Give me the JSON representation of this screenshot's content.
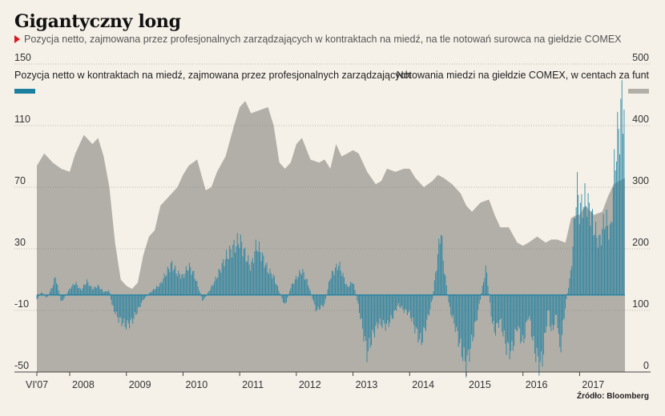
{
  "header": {
    "title": "Gigantyczny long",
    "subtitle": "Pozycja netto, zajmowana przez profesjonalnych zarządzających w kontraktach na miedź, na tle notowań surowca na giełdzie COMEX"
  },
  "legend": {
    "left": "Pozycja netto w kontraktach na miedź, zajmowana przez profesjonalnych zarządzających",
    "right": "Notowania miedzi na giełdzie COMEX, w centach za funt"
  },
  "source": "Źródło: Bloomberg",
  "colors": {
    "net_position": "#1b7fa0",
    "copper_price": "#b2afa8",
    "background": "#f6f1e8",
    "title_marker": "#d7191c"
  },
  "chart_data": {
    "type": "area",
    "x_tick_labels": [
      "VI'07",
      "2008",
      "2009",
      "2010",
      "2011",
      "2012",
      "2013",
      "2014",
      "2015",
      "2016",
      "2017"
    ],
    "x_ticks": [
      2007.42,
      2008.0,
      2009.0,
      2010.0,
      2011.0,
      2012.0,
      2013.0,
      2014.0,
      2015.0,
      2016.0,
      2017.0
    ],
    "x_range": [
      2007.42,
      2017.8
    ],
    "left_axis": {
      "ticks": [
        150,
        110,
        70,
        30,
        -10,
        -50
      ],
      "range": [
        -50,
        150
      ]
    },
    "right_axis": {
      "ticks": [
        500,
        400,
        300,
        200,
        100,
        0
      ],
      "range": [
        0,
        500
      ]
    },
    "series": [
      {
        "name": "Notowania miedzi na giełdzie COMEX, w centach za funt",
        "axis": "right",
        "type": "area",
        "points": [
          [
            2007.42,
            335
          ],
          [
            2007.55,
            355
          ],
          [
            2007.7,
            340
          ],
          [
            2007.85,
            330
          ],
          [
            2008.0,
            325
          ],
          [
            2008.1,
            355
          ],
          [
            2008.25,
            385
          ],
          [
            2008.4,
            370
          ],
          [
            2008.5,
            380
          ],
          [
            2008.6,
            350
          ],
          [
            2008.7,
            300
          ],
          [
            2008.8,
            210
          ],
          [
            2008.9,
            150
          ],
          [
            2009.0,
            140
          ],
          [
            2009.1,
            135
          ],
          [
            2009.2,
            145
          ],
          [
            2009.3,
            190
          ],
          [
            2009.4,
            220
          ],
          [
            2009.5,
            230
          ],
          [
            2009.6,
            270
          ],
          [
            2009.75,
            285
          ],
          [
            2009.9,
            300
          ],
          [
            2010.0,
            320
          ],
          [
            2010.1,
            335
          ],
          [
            2010.25,
            345
          ],
          [
            2010.4,
            295
          ],
          [
            2010.5,
            300
          ],
          [
            2010.6,
            325
          ],
          [
            2010.75,
            350
          ],
          [
            2010.9,
            400
          ],
          [
            2011.0,
            430
          ],
          [
            2011.1,
            440
          ],
          [
            2011.2,
            420
          ],
          [
            2011.35,
            425
          ],
          [
            2011.5,
            430
          ],
          [
            2011.6,
            400
          ],
          [
            2011.7,
            340
          ],
          [
            2011.8,
            330
          ],
          [
            2011.9,
            340
          ],
          [
            2012.0,
            370
          ],
          [
            2012.1,
            380
          ],
          [
            2012.25,
            345
          ],
          [
            2012.4,
            340
          ],
          [
            2012.5,
            345
          ],
          [
            2012.6,
            330
          ],
          [
            2012.7,
            370
          ],
          [
            2012.8,
            350
          ],
          [
            2012.9,
            355
          ],
          [
            2013.0,
            360
          ],
          [
            2013.1,
            355
          ],
          [
            2013.25,
            325
          ],
          [
            2013.4,
            305
          ],
          [
            2013.5,
            310
          ],
          [
            2013.6,
            330
          ],
          [
            2013.75,
            325
          ],
          [
            2013.9,
            330
          ],
          [
            2014.0,
            330
          ],
          [
            2014.1,
            315
          ],
          [
            2014.25,
            300
          ],
          [
            2014.4,
            310
          ],
          [
            2014.5,
            320
          ],
          [
            2014.6,
            315
          ],
          [
            2014.75,
            305
          ],
          [
            2014.9,
            290
          ],
          [
            2015.0,
            270
          ],
          [
            2015.1,
            260
          ],
          [
            2015.25,
            275
          ],
          [
            2015.4,
            280
          ],
          [
            2015.5,
            255
          ],
          [
            2015.6,
            235
          ],
          [
            2015.75,
            235
          ],
          [
            2015.9,
            210
          ],
          [
            2016.0,
            205
          ],
          [
            2016.1,
            210
          ],
          [
            2016.25,
            220
          ],
          [
            2016.4,
            210
          ],
          [
            2016.5,
            215
          ],
          [
            2016.6,
            215
          ],
          [
            2016.75,
            210
          ],
          [
            2016.85,
            250
          ],
          [
            2016.95,
            255
          ],
          [
            2017.0,
            255
          ],
          [
            2017.1,
            270
          ],
          [
            2017.25,
            255
          ],
          [
            2017.4,
            260
          ],
          [
            2017.5,
            285
          ],
          [
            2017.6,
            305
          ],
          [
            2017.7,
            310
          ],
          [
            2017.8,
            315
          ]
        ]
      },
      {
        "name": "Pozycja netto w kontraktach na miedź, zajmowana przez profesjonalnych zarządzających",
        "axis": "left",
        "type": "bar",
        "points": [
          [
            2007.42,
            -3
          ],
          [
            2007.5,
            2
          ],
          [
            2007.6,
            -2
          ],
          [
            2007.7,
            6
          ],
          [
            2007.75,
            12
          ],
          [
            2007.85,
            -5
          ],
          [
            2008.0,
            4
          ],
          [
            2008.1,
            8
          ],
          [
            2008.2,
            3
          ],
          [
            2008.3,
            9
          ],
          [
            2008.4,
            4
          ],
          [
            2008.5,
            6
          ],
          [
            2008.6,
            2
          ],
          [
            2008.7,
            3
          ],
          [
            2008.75,
            -7
          ],
          [
            2008.85,
            -15
          ],
          [
            2009.0,
            -20
          ],
          [
            2009.1,
            -17
          ],
          [
            2009.2,
            -10
          ],
          [
            2009.3,
            -3
          ],
          [
            2009.4,
            1
          ],
          [
            2009.5,
            4
          ],
          [
            2009.6,
            7
          ],
          [
            2009.7,
            14
          ],
          [
            2009.8,
            20
          ],
          [
            2009.9,
            14
          ],
          [
            2010.0,
            12
          ],
          [
            2010.1,
            19
          ],
          [
            2010.2,
            13
          ],
          [
            2010.35,
            -4
          ],
          [
            2010.5,
            5
          ],
          [
            2010.6,
            12
          ],
          [
            2010.75,
            24
          ],
          [
            2010.85,
            29
          ],
          [
            2011.0,
            36
          ],
          [
            2011.1,
            26
          ],
          [
            2011.2,
            18
          ],
          [
            2011.3,
            33
          ],
          [
            2011.4,
            25
          ],
          [
            2011.5,
            16
          ],
          [
            2011.6,
            12
          ],
          [
            2011.7,
            2
          ],
          [
            2011.8,
            -7
          ],
          [
            2011.9,
            5
          ],
          [
            2012.0,
            11
          ],
          [
            2012.1,
            16
          ],
          [
            2012.2,
            8
          ],
          [
            2012.35,
            -10
          ],
          [
            2012.5,
            -6
          ],
          [
            2012.6,
            12
          ],
          [
            2012.75,
            20
          ],
          [
            2012.9,
            5
          ],
          [
            2013.0,
            9
          ],
          [
            2013.1,
            -8
          ],
          [
            2013.2,
            -28
          ],
          [
            2013.25,
            -38
          ],
          [
            2013.35,
            -26
          ],
          [
            2013.45,
            -18
          ],
          [
            2013.6,
            -20
          ],
          [
            2013.7,
            -14
          ],
          [
            2013.8,
            -6
          ],
          [
            2013.9,
            -10
          ],
          [
            2014.0,
            -12
          ],
          [
            2014.1,
            -22
          ],
          [
            2014.2,
            -31
          ],
          [
            2014.3,
            -18
          ],
          [
            2014.4,
            -3
          ],
          [
            2014.5,
            26
          ],
          [
            2014.55,
            44
          ],
          [
            2014.6,
            20
          ],
          [
            2014.7,
            -8
          ],
          [
            2014.8,
            -20
          ],
          [
            2014.9,
            -34
          ],
          [
            2015.0,
            -46
          ],
          [
            2015.1,
            -30
          ],
          [
            2015.2,
            -12
          ],
          [
            2015.3,
            8
          ],
          [
            2015.35,
            18
          ],
          [
            2015.45,
            -16
          ],
          [
            2015.5,
            -24
          ],
          [
            2015.6,
            -16
          ],
          [
            2015.7,
            -33
          ],
          [
            2015.8,
            -37
          ],
          [
            2015.9,
            -20
          ],
          [
            2016.0,
            -32
          ],
          [
            2016.1,
            -12
          ],
          [
            2016.2,
            -35
          ],
          [
            2016.3,
            -46
          ],
          [
            2016.35,
            -40
          ],
          [
            2016.45,
            -8
          ],
          [
            2016.5,
            -25
          ],
          [
            2016.6,
            -12
          ],
          [
            2016.65,
            -38
          ],
          [
            2016.75,
            -7
          ],
          [
            2016.85,
            16
          ],
          [
            2016.9,
            42
          ],
          [
            2016.95,
            72
          ],
          [
            2017.0,
            55
          ],
          [
            2017.1,
            62
          ],
          [
            2017.2,
            54
          ],
          [
            2017.25,
            44
          ],
          [
            2017.35,
            34
          ],
          [
            2017.45,
            50
          ],
          [
            2017.55,
            40
          ],
          [
            2017.6,
            75
          ],
          [
            2017.65,
            98
          ],
          [
            2017.7,
            108
          ],
          [
            2017.75,
            125
          ],
          [
            2017.8,
            124
          ]
        ]
      }
    ],
    "grid": true
  }
}
